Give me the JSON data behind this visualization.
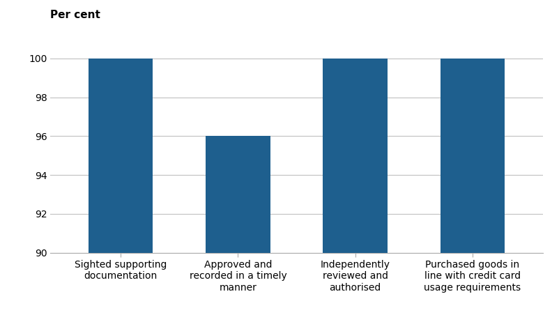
{
  "categories": [
    "Sighted supporting\ndocumentation",
    "Approved and\nrecorded in a timely\nmanner",
    "Independently\nreviewed and\nauthorised",
    "Purchased goods in\nline with credit card\nusage requirements"
  ],
  "values": [
    100,
    96,
    100,
    100
  ],
  "bar_color": "#1e5f8e",
  "ylim": [
    90,
    101
  ],
  "yticks": [
    90,
    92,
    94,
    96,
    98,
    100
  ],
  "ylabel": "Per cent",
  "bar_width": 0.55,
  "background_color": "#ffffff",
  "grid_color": "#c0c0c0",
  "tick_label_fontsize": 10,
  "ylabel_fontsize": 11,
  "ylabel_fontweight": "bold"
}
